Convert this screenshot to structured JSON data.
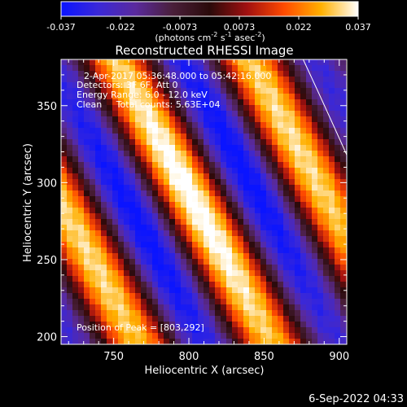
{
  "colorbar": {
    "ticks": [
      "-0.037",
      "-0.022",
      "-0.0073",
      "0.0073",
      "0.022",
      "0.037"
    ],
    "unit_prefix": "(photons cm",
    "unit_exp1": "-2",
    "unit_mid": " s",
    "unit_exp2": "-1",
    "unit_mid2": " asec",
    "unit_exp3": "-2",
    "unit_suffix": ")",
    "colors": [
      "#0a14ff",
      "#3a28d8",
      "#5a2a9e",
      "#4a1f3a",
      "#2a0a0a",
      "#a01010",
      "#ff4a00",
      "#ffb000",
      "#ffffff"
    ]
  },
  "chart_data": {
    "type": "heatmap",
    "title": "Reconstructed RHESSI Image",
    "xlabel": "Heliocentric X (arcsec)",
    "ylabel": "Heliocentric Y (arcsec)",
    "xlim": [
      715,
      905
    ],
    "ylim": [
      195,
      380
    ],
    "xticks": [
      750,
      800,
      850,
      900
    ],
    "yticks": [
      200,
      250,
      300,
      350
    ],
    "annotations": {
      "line1": "2-Apr-2017 05:36:48.000 to 05:42:16.000",
      "line2": "Detectors: 3F 6F, Att 0",
      "line3": "Energy Range: 6.0 - 12.0 keV",
      "line4": "Clean     Total counts: 5.63E+04",
      "peak": "Position of Peak = [803,292]"
    },
    "peak": [
      803,
      292
    ],
    "value_range": [
      -0.037,
      0.037
    ],
    "limb_curve": [
      [
        876,
        380
      ],
      [
        905,
        318
      ]
    ]
  },
  "timestamp": "6-Sep-2022 04:33"
}
